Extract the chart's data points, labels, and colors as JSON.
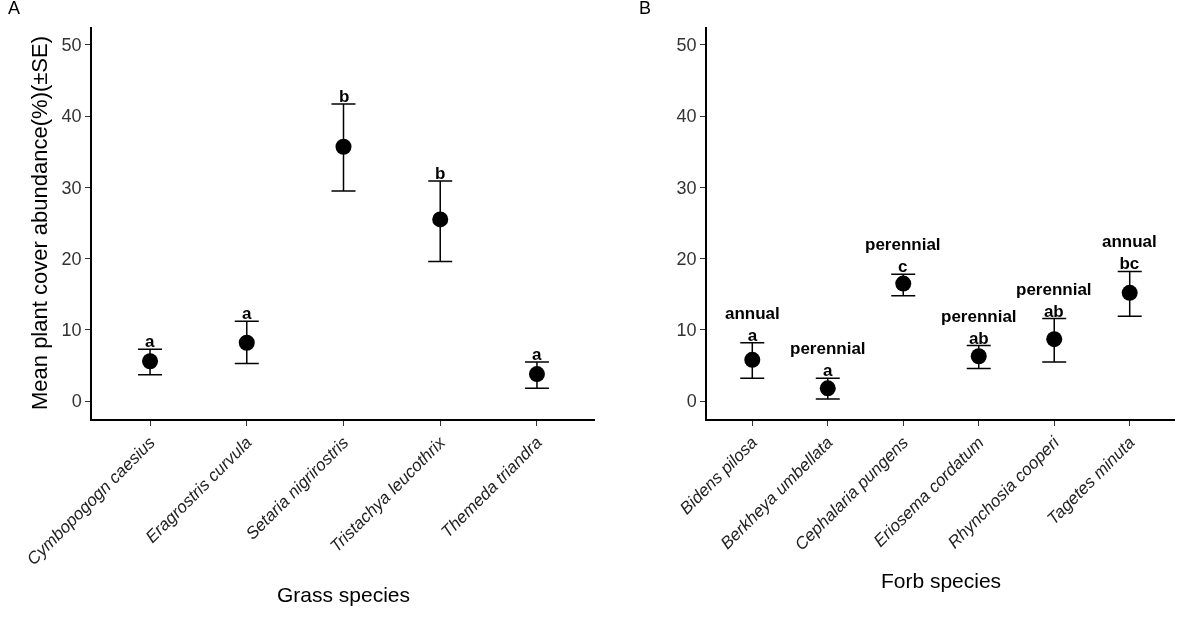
{
  "chart_data": [
    {
      "type": "scatter",
      "ylabel": "Mean plant cover abundance(%)(±SE)",
      "xlabel": "Grass species",
      "categories": [
        "Cymbopogogn caesius",
        "Eragrostris curvula",
        "Setaria nigrirostris",
        "Tristachya leucothrix",
        "Themeda triandra"
      ],
      "series": [
        {
          "color": "#000000",
          "values": [
            5.6,
            8.2,
            35.7,
            25.5,
            3.8
          ],
          "errors": [
            [
              3.7,
              7.3
            ],
            [
              5.3,
              11.2
            ],
            [
              29.5,
              41.7
            ],
            [
              19.6,
              30.9
            ],
            [
              1.8,
              5.5
            ]
          ]
        }
      ],
      "ylim": [
        -2.5,
        52.5
      ],
      "yticks": [
        0,
        10,
        20,
        30,
        40,
        50
      ],
      "grid": false,
      "marker": "circle",
      "annotations": [
        "A",
        "a",
        "a",
        "b",
        "b",
        "a"
      ]
    },
    {
      "type": "scatter",
      "xlabel": "Forb species",
      "categories": [
        "Bidens pilosa",
        "Berkheya umbellata",
        "Cephalaria pungens",
        "Eriosema cordatum",
        "Rhynchosia cooperi",
        "Tagetes minuta"
      ],
      "series": [
        {
          "color": "#000000",
          "values": [
            5.8,
            1.8,
            16.5,
            6.3,
            8.7,
            15.2
          ],
          "errors": [
            [
              3.2,
              8.2
            ],
            [
              0.3,
              3.2
            ],
            [
              14.8,
              17.8
            ],
            [
              4.6,
              7.8
            ],
            [
              5.5,
              11.6
            ],
            [
              11.9,
              18.2
            ]
          ]
        }
      ],
      "ylim": [
        -2.5,
        52.5
      ],
      "yticks": [
        0,
        10,
        20,
        30,
        40,
        50
      ],
      "grid": false,
      "marker": "circle",
      "annotations": [
        "B",
        "annual\na",
        "perennial\na",
        "perennial\nc",
        "perennial\nab",
        "perennial\nab",
        "annual\nbc"
      ]
    }
  ]
}
